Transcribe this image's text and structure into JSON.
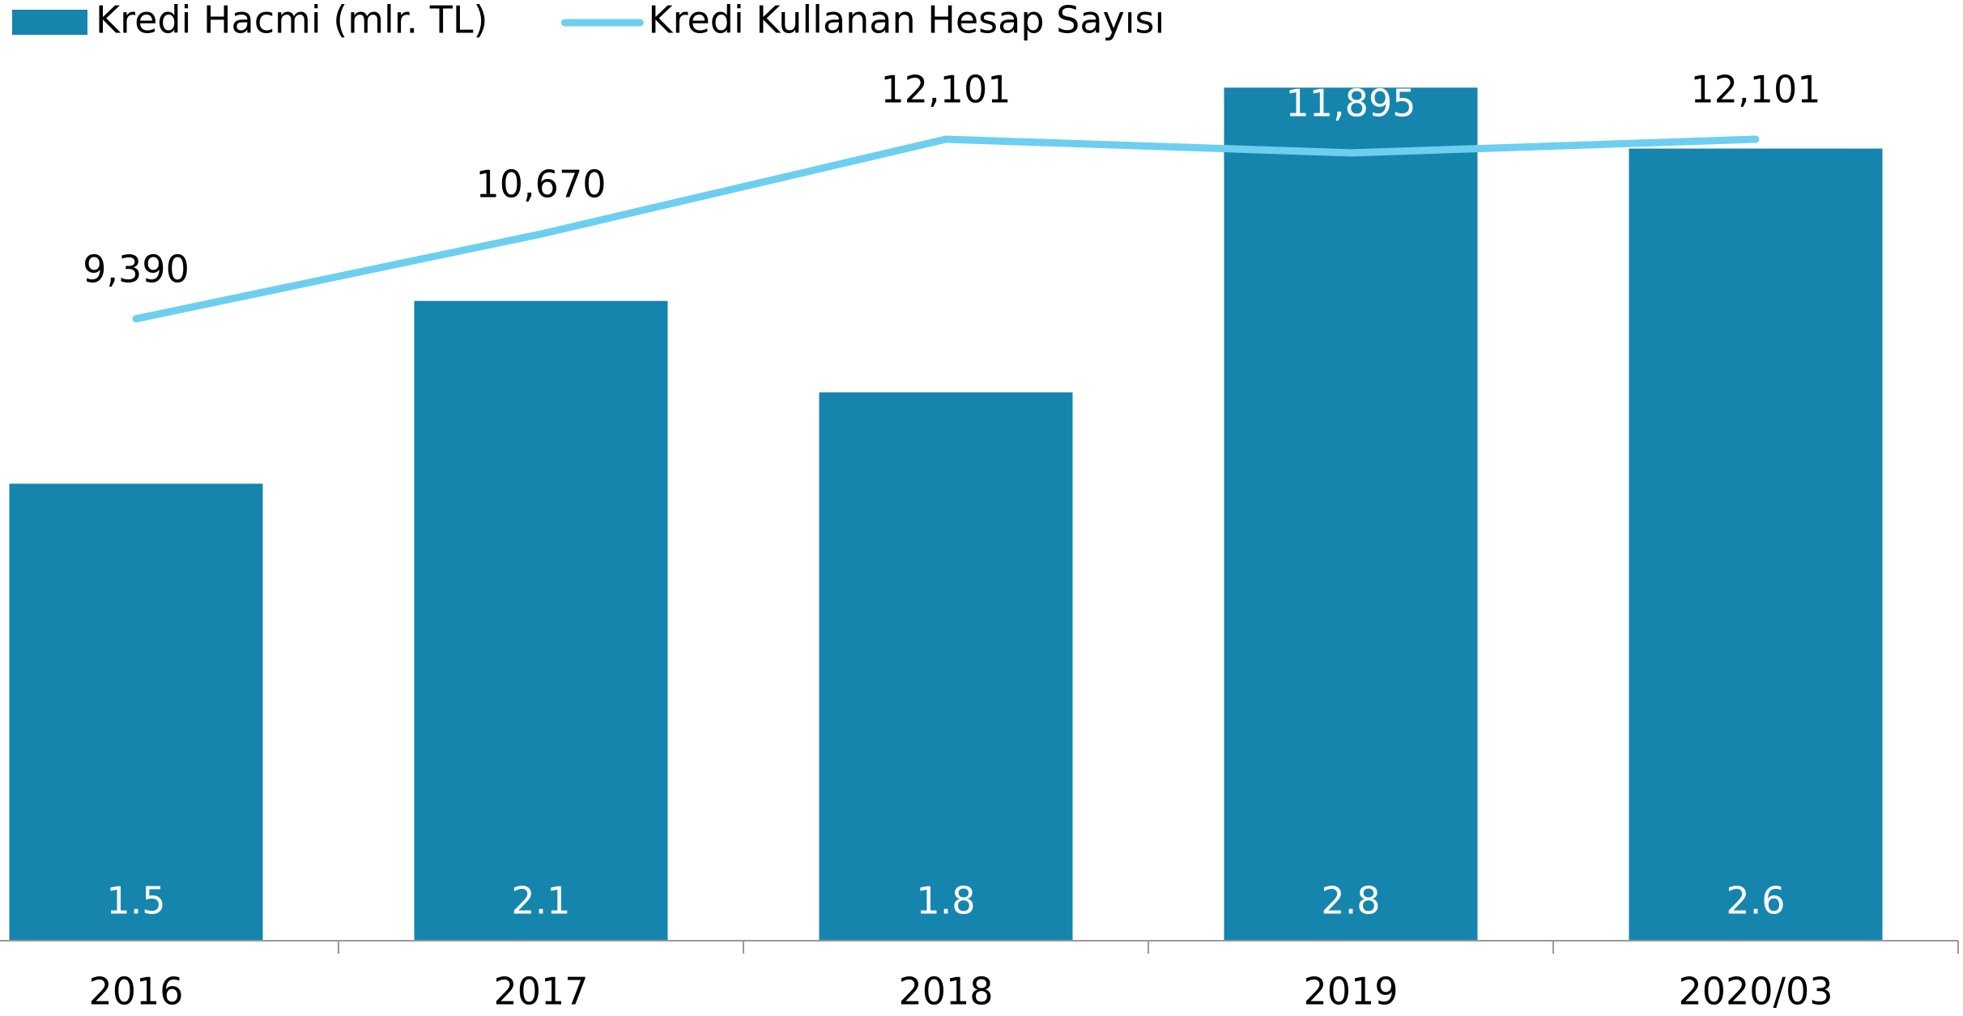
{
  "chart_data": {
    "type": "bar-line",
    "categories": [
      "2016",
      "2017",
      "2018",
      "2019",
      "2020/03"
    ],
    "series": [
      {
        "name": "Kredi Hacmi (mlr. TL)",
        "type": "bar",
        "color": "#1585ae",
        "values": [
          1.5,
          2.1,
          1.8,
          2.8,
          2.6
        ]
      },
      {
        "name": "Kredi Kullanan Hesap Sayısı",
        "type": "line",
        "axis": "y2",
        "color": "#6dcff0",
        "values": [
          9390,
          10670,
          12101,
          11895,
          12101
        ],
        "value_labels": [
          "9,390",
          "10,670",
          "12,101",
          "11,895",
          "12,101"
        ]
      }
    ],
    "ylim": [
      0,
      3
    ],
    "y2lim": [
      0,
      13800
    ],
    "legend": "top-left"
  }
}
